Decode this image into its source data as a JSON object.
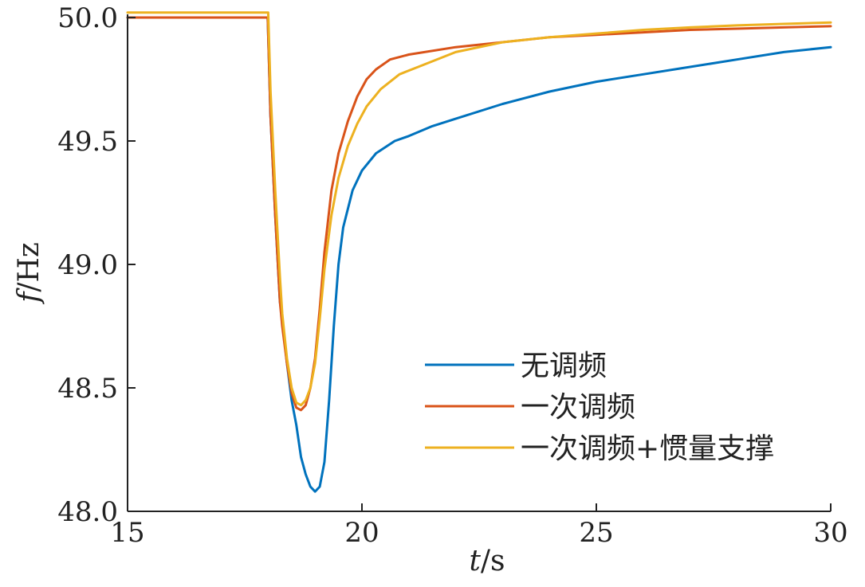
{
  "chart_data": {
    "type": "line",
    "title": "",
    "xlabel": {
      "var": "t",
      "unit": "/s"
    },
    "ylabel": {
      "var": "f",
      "unit": "/Hz"
    },
    "xlim": [
      15,
      30
    ],
    "ylim": [
      48.0,
      50.0
    ],
    "xticks": [
      15,
      20,
      25,
      30
    ],
    "yticks": [
      48.0,
      48.5,
      49.0,
      49.5,
      50.0
    ],
    "grid": false,
    "legend_position": "lower-right",
    "series": [
      {
        "name": "无调频",
        "color": "#0072BD",
        "points": [
          [
            15,
            50.0
          ],
          [
            17.99,
            50.0
          ],
          [
            18.05,
            49.6
          ],
          [
            18.15,
            49.2
          ],
          [
            18.25,
            48.85
          ],
          [
            18.3,
            48.78
          ],
          [
            18.4,
            48.6
          ],
          [
            18.5,
            48.45
          ],
          [
            18.6,
            48.35
          ],
          [
            18.7,
            48.22
          ],
          [
            18.8,
            48.15
          ],
          [
            18.9,
            48.1
          ],
          [
            19.0,
            48.08
          ],
          [
            19.1,
            48.1
          ],
          [
            19.2,
            48.2
          ],
          [
            19.3,
            48.45
          ],
          [
            19.4,
            48.75
          ],
          [
            19.5,
            49.0
          ],
          [
            19.6,
            49.15
          ],
          [
            19.8,
            49.3
          ],
          [
            20.0,
            49.38
          ],
          [
            20.3,
            49.45
          ],
          [
            20.7,
            49.5
          ],
          [
            21.0,
            49.52
          ],
          [
            21.5,
            49.56
          ],
          [
            22,
            49.59
          ],
          [
            23,
            49.65
          ],
          [
            24,
            49.7
          ],
          [
            25,
            49.74
          ],
          [
            26,
            49.77
          ],
          [
            27,
            49.8
          ],
          [
            28,
            49.83
          ],
          [
            29,
            49.86
          ],
          [
            30,
            49.88
          ]
        ]
      },
      {
        "name": "一次调频",
        "color": "#D95319",
        "points": [
          [
            15,
            50.0
          ],
          [
            17.99,
            50.0
          ],
          [
            18.05,
            49.6
          ],
          [
            18.15,
            49.2
          ],
          [
            18.25,
            48.85
          ],
          [
            18.3,
            48.75
          ],
          [
            18.4,
            48.6
          ],
          [
            18.5,
            48.48
          ],
          [
            18.6,
            48.42
          ],
          [
            18.7,
            48.41
          ],
          [
            18.8,
            48.43
          ],
          [
            18.9,
            48.5
          ],
          [
            19.0,
            48.62
          ],
          [
            19.1,
            48.82
          ],
          [
            19.2,
            49.05
          ],
          [
            19.35,
            49.3
          ],
          [
            19.5,
            49.45
          ],
          [
            19.7,
            49.58
          ],
          [
            19.9,
            49.68
          ],
          [
            20.1,
            49.75
          ],
          [
            20.3,
            49.79
          ],
          [
            20.6,
            49.83
          ],
          [
            21.0,
            49.85
          ],
          [
            22,
            49.88
          ],
          [
            23,
            49.9
          ],
          [
            24,
            49.92
          ],
          [
            25,
            49.93
          ],
          [
            26,
            49.94
          ],
          [
            27,
            49.95
          ],
          [
            28,
            49.955
          ],
          [
            29,
            49.96
          ],
          [
            30,
            49.965
          ]
        ]
      },
      {
        "name": "一次调频+惯量支撑",
        "color": "#EDB120",
        "points": [
          [
            15,
            50.02
          ],
          [
            18.0,
            50.02
          ],
          [
            18.05,
            49.7
          ],
          [
            18.15,
            49.3
          ],
          [
            18.25,
            48.95
          ],
          [
            18.3,
            48.8
          ],
          [
            18.4,
            48.62
          ],
          [
            18.5,
            48.5
          ],
          [
            18.6,
            48.44
          ],
          [
            18.7,
            48.43
          ],
          [
            18.8,
            48.45
          ],
          [
            18.9,
            48.5
          ],
          [
            19.0,
            48.6
          ],
          [
            19.1,
            48.78
          ],
          [
            19.2,
            48.98
          ],
          [
            19.35,
            49.2
          ],
          [
            19.5,
            49.35
          ],
          [
            19.7,
            49.48
          ],
          [
            19.9,
            49.57
          ],
          [
            20.1,
            49.64
          ],
          [
            20.4,
            49.71
          ],
          [
            20.8,
            49.77
          ],
          [
            21.2,
            49.8
          ],
          [
            22,
            49.86
          ],
          [
            23,
            49.9
          ],
          [
            24,
            49.92
          ],
          [
            25,
            49.935
          ],
          [
            26,
            49.95
          ],
          [
            27,
            49.96
          ],
          [
            28,
            49.968
          ],
          [
            29,
            49.974
          ],
          [
            30,
            49.98
          ]
        ]
      }
    ]
  }
}
